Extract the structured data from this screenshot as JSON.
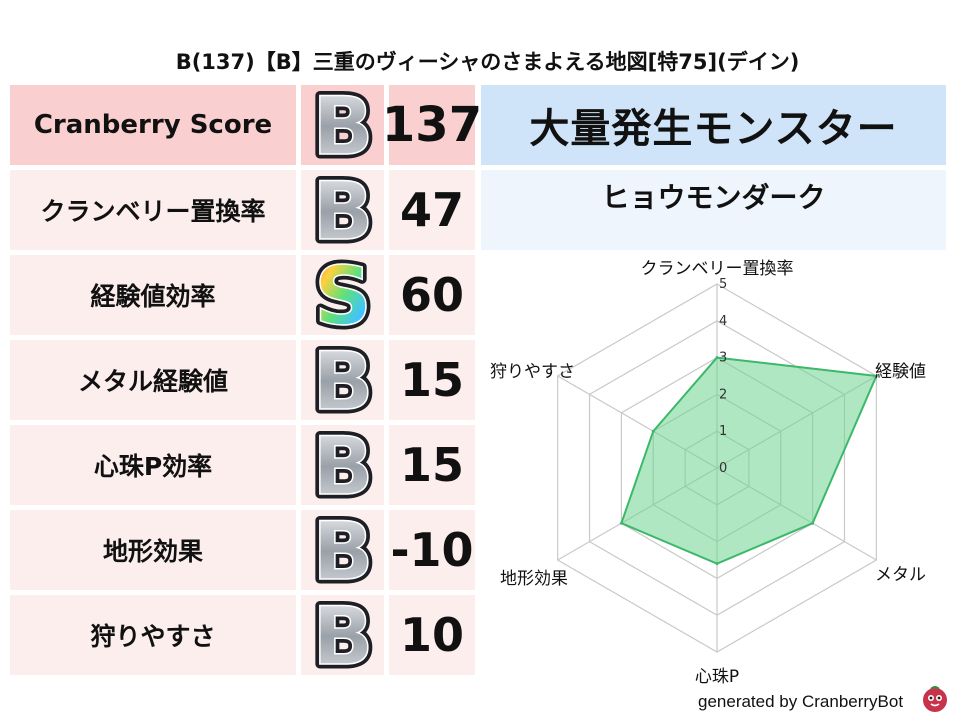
{
  "title": "B(137)【B】三重のヴィーシャのさまよえる地図[特75](デイン)",
  "header_row": {
    "label": "Cranberry Score",
    "grade": "B",
    "value": "137"
  },
  "rows": [
    {
      "label": "クランベリー置換率",
      "grade": "B",
      "value": "47"
    },
    {
      "label": "経験値効率",
      "grade": "S",
      "value": "60"
    },
    {
      "label": "メタル経験値",
      "grade": "B",
      "value": "15"
    },
    {
      "label": "心珠P効率",
      "grade": "B",
      "value": "15"
    },
    {
      "label": "地形効果",
      "grade": "B",
      "value": "-10"
    },
    {
      "label": "狩りやすさ",
      "grade": "B",
      "value": "10"
    }
  ],
  "monster": {
    "header": "大量発生モンスター",
    "name": "ヒョウモンダーク"
  },
  "colors": {
    "header_pink": "#f9cfcf",
    "row_pink": "#fdeeee",
    "header_blue": "#cfe4f8",
    "radar_fill": "#6dd38f",
    "radar_stroke": "#3cb86a"
  },
  "chart_data": {
    "type": "radar",
    "axes": [
      "クランベリー置換率",
      "経験値",
      "メタル",
      "心珠P",
      "地形効果",
      "狩りやすさ"
    ],
    "values": [
      3,
      5,
      3,
      2.6,
      3,
      2
    ],
    "rlim": [
      0,
      5
    ],
    "ticks": [
      "0",
      "1",
      "2",
      "3",
      "4",
      "5"
    ]
  },
  "footer": "generated by CranberryBot"
}
